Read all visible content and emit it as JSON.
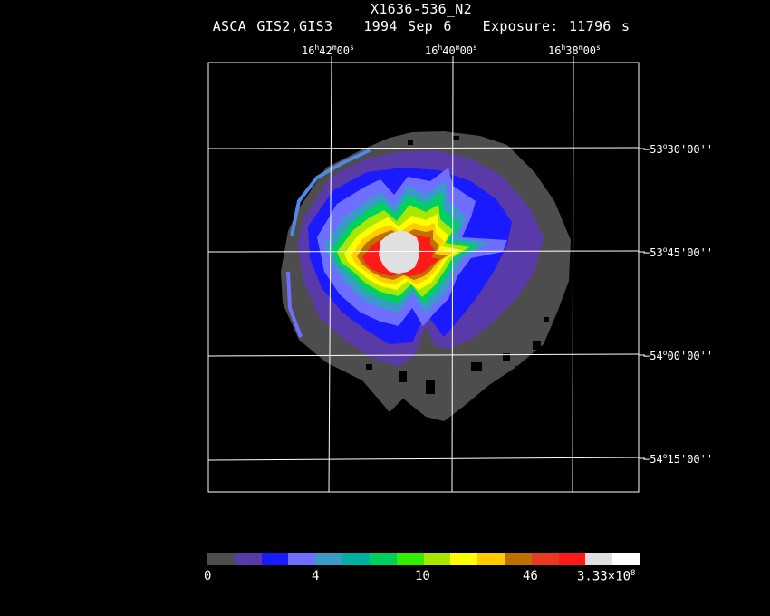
{
  "header": {
    "object": "X1636-536_N2",
    "instrument": "ASCA GIS2,GIS3",
    "date": "1994 Sep  6",
    "exposure": "Exposure: 11796 s"
  },
  "ra_labels": [
    {
      "h": "16",
      "m": "42",
      "s": "00"
    },
    {
      "h": "16",
      "m": "40",
      "s": "00"
    },
    {
      "h": "16",
      "m": "38",
      "s": "00"
    }
  ],
  "dec_labels": [
    {
      "d": "−53",
      "m": "30",
      "s": "00"
    },
    {
      "d": "−53",
      "m": "45",
      "s": "00"
    },
    {
      "d": "−54",
      "m": "00",
      "s": "00"
    },
    {
      "d": "−54",
      "m": "15",
      "s": "00"
    }
  ],
  "colorbar": {
    "colors": [
      "#4d4d4d",
      "#5a3aa8",
      "#1a1aff",
      "#6f6fff",
      "#3a9ac8",
      "#00b0a0",
      "#00d060",
      "#33ee00",
      "#a8e800",
      "#ffff00",
      "#ffcc00",
      "#c07000",
      "#e83a20",
      "#ff1a1a",
      "#e0e0e0",
      "#ffffff"
    ],
    "tick_0": "0",
    "tick_1": "4",
    "tick_2": "10",
    "tick_3": "46",
    "tick_4_mantissa": "3.33×10",
    "tick_4_exp": "8"
  }
}
